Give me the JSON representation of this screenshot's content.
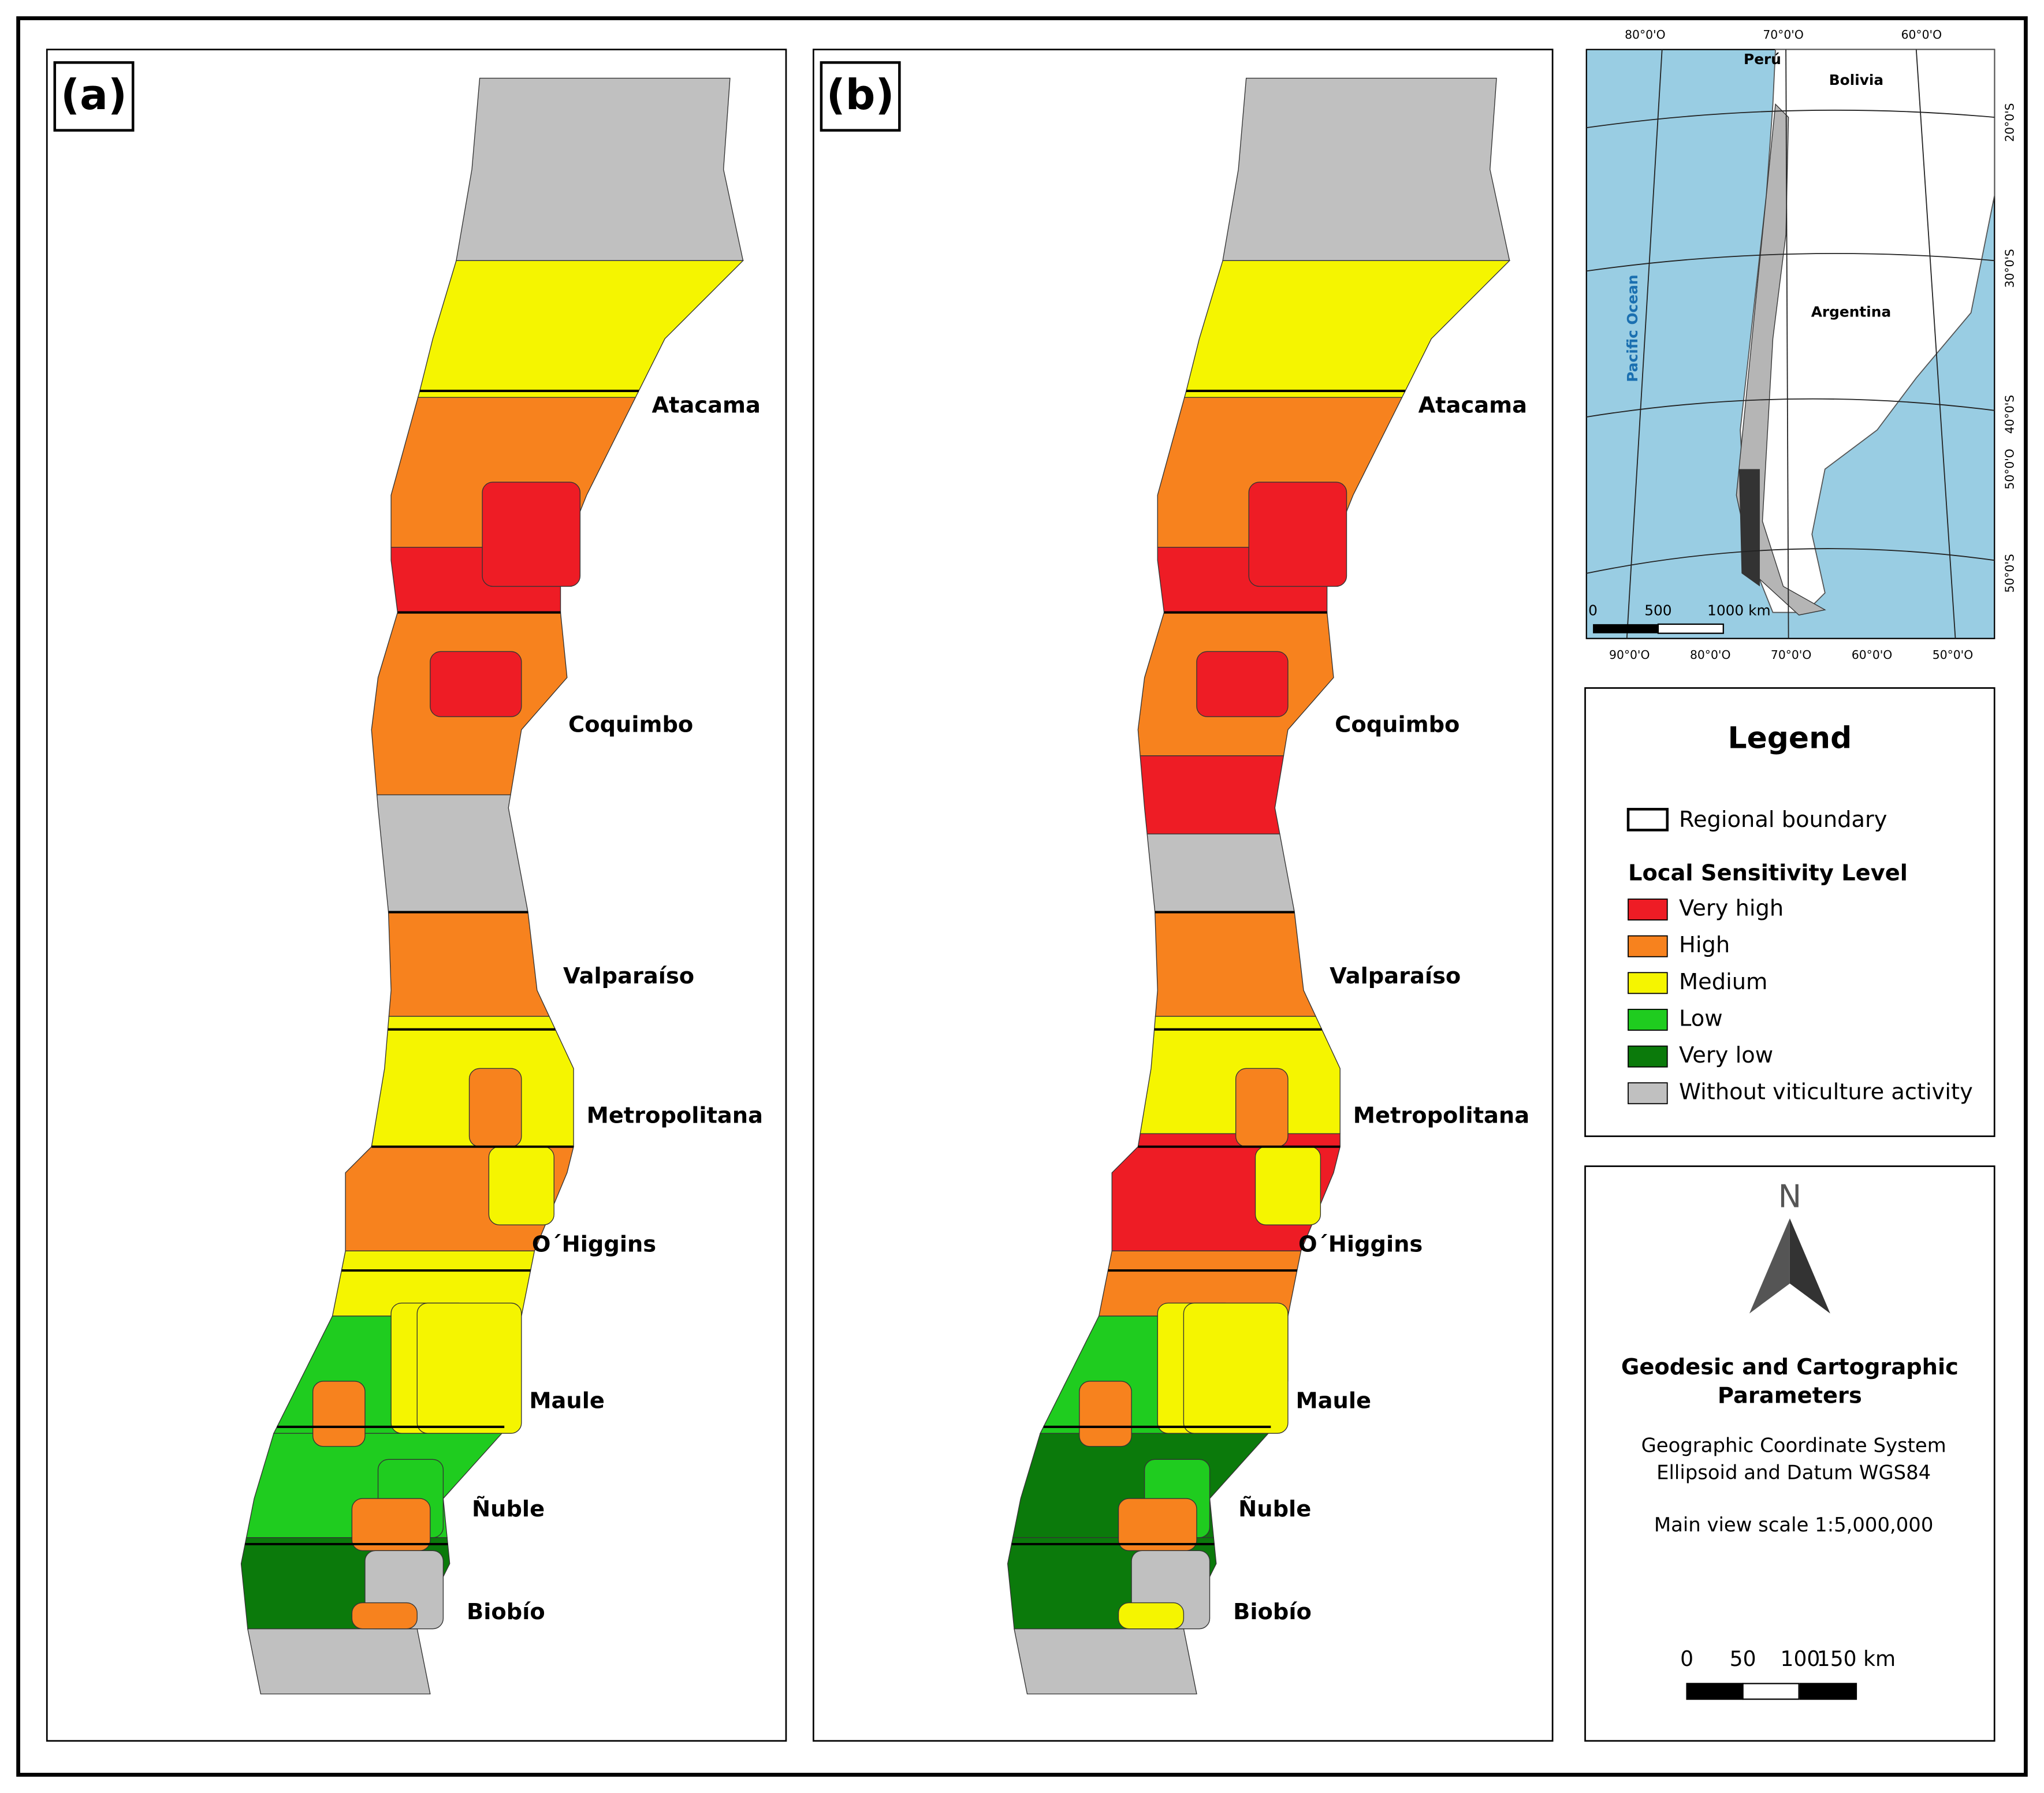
{
  "panels": [
    {
      "label": "(a)",
      "regions": [
        "Atacama",
        "Coquimbo",
        "Valparaíso",
        "Metropolitana",
        "O´Higgins",
        "Maule",
        "Ñuble",
        "Biobío"
      ]
    },
    {
      "label": "(b)",
      "regions": [
        "Atacama",
        "Coquimbo",
        "Valparaíso",
        "Metropolitana",
        "O´Higgins",
        "Maule",
        "Ñuble",
        "Biobío"
      ]
    }
  ],
  "inset": {
    "countries": [
      "Perú",
      "Bolivia",
      "Argentina"
    ],
    "ocean": "Pacific Ocean",
    "top_ticks": [
      "80°0'O",
      "70°0'O",
      "60°0'O"
    ],
    "bottom_ticks": [
      "90°0'O",
      "80°0'O",
      "70°0'O",
      "60°0'O",
      "50°0'O"
    ],
    "right_ticks": [
      "20°0'S",
      "30°0'S",
      "40°0'S",
      "50°0'O",
      "50°0'S"
    ],
    "scale_labels": [
      "0",
      "500",
      "1000 km"
    ]
  },
  "legend": {
    "title": "Legend",
    "boundary": "Regional boundary",
    "sensitivity_title": "Local Sensitivity Level",
    "items": [
      {
        "label": "Very high",
        "color": "#ee1c25"
      },
      {
        "label": "High",
        "color": "#f7821e"
      },
      {
        "label": "Medium",
        "color": "#f5f500"
      },
      {
        "label": "Low",
        "color": "#1fcc1f"
      },
      {
        "label": "Very low",
        "color": "#0b7a0b"
      },
      {
        "label": "Without viticulture activity",
        "color": "#c0c0c0"
      }
    ]
  },
  "parameters": {
    "north": "N",
    "title": [
      "Geodesic and Cartographic",
      "Parameters"
    ],
    "lines": [
      "Geographic Coordinate System",
      "Ellipsoid and Datum WGS84",
      "Main view scale 1:5,000,000"
    ],
    "scale_labels": [
      "0",
      "50",
      "100",
      "150 km"
    ]
  }
}
